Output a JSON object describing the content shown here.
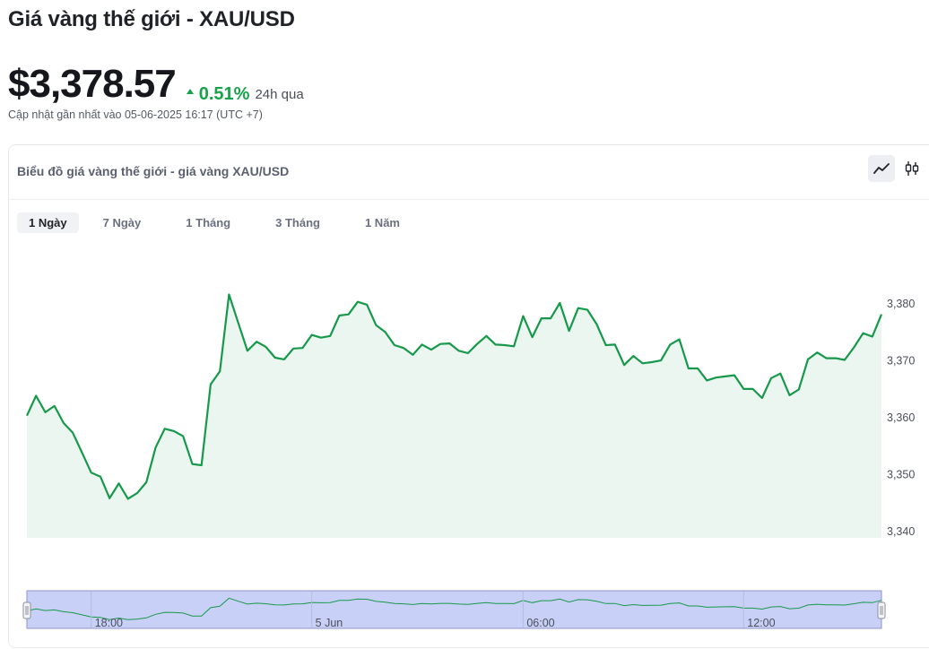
{
  "header": {
    "title": "Giá vàng thế giới - XAU/USD",
    "price": "$3,378.57",
    "change_pct": "0.51%",
    "change_period": "24h qua",
    "updated": "Cập nhật gần nhất vào 05-06-2025 16:17 (UTC +7)"
  },
  "card": {
    "title": "Biểu đồ giá vàng thế giới - giá vàng XAU/USD",
    "view_buttons": [
      {
        "name": "line-chart-icon",
        "active": true
      },
      {
        "name": "candlestick-icon",
        "active": false
      }
    ],
    "tabs": [
      {
        "label": "1 Ngày",
        "active": true
      },
      {
        "label": "7 Ngày",
        "active": false
      },
      {
        "label": "1 Tháng",
        "active": false
      },
      {
        "label": "3 Tháng",
        "active": false
      },
      {
        "label": "1 Năm",
        "active": false
      }
    ]
  },
  "colors": {
    "line": "#16994a",
    "area": "#eaf6ef",
    "up": "#16a34a",
    "navigator_fill": "#c9d0f7",
    "navigator_border": "#8d95c8"
  },
  "chart_data": {
    "type": "area",
    "title": "",
    "xlabel": "",
    "ylabel": "",
    "ylim": [
      3340,
      3382
    ],
    "yticks": [
      "3,340",
      "3,350",
      "3,360",
      "3,370",
      "3,380"
    ],
    "ytick_values": [
      3340,
      3350,
      3360,
      3370,
      3380
    ],
    "navigator_ticks": [
      "18:00",
      "5 Jun",
      "06:00",
      "12:00"
    ],
    "navigator_tick_index": [
      7,
      31,
      54,
      78
    ],
    "grid": false,
    "series": [
      {
        "values": [
          3360.2,
          3363.7,
          3360.8,
          3361.9,
          3358.9,
          3357.2,
          3353.7,
          3350.2,
          3349.5,
          3345.7,
          3348.3,
          3345.6,
          3346.6,
          3348.5,
          3354.6,
          3357.9,
          3357.5,
          3356.6,
          3351.7,
          3351.5,
          3365.7,
          3368.0,
          3381.5,
          3376.5,
          3371.6,
          3373.2,
          3372.3,
          3370.4,
          3370.1,
          3372.0,
          3372.1,
          3374.4,
          3373.9,
          3374.2,
          3377.8,
          3378.0,
          3380.2,
          3379.7,
          3376.1,
          3374.9,
          3372.6,
          3372.1,
          3370.9,
          3372.7,
          3371.8,
          3372.8,
          3372.9,
          3371.6,
          3371.2,
          3372.8,
          3374.2,
          3372.7,
          3372.6,
          3372.4,
          3377.7,
          3374.0,
          3377.3,
          3377.3,
          3380.0,
          3375.1,
          3379.1,
          3378.8,
          3376.3,
          3372.6,
          3372.7,
          3369.1,
          3370.7,
          3369.4,
          3369.6,
          3369.9,
          3372.7,
          3373.6,
          3368.5,
          3368.5,
          3366.4,
          3366.9,
          3367.1,
          3367.3,
          3364.9,
          3364.9,
          3363.3,
          3366.8,
          3367.6,
          3363.8,
          3364.8,
          3370.1,
          3371.3,
          3370.3,
          3370.3,
          3370.0,
          3372.2,
          3374.7,
          3374.1,
          3378.0
        ]
      }
    ]
  }
}
